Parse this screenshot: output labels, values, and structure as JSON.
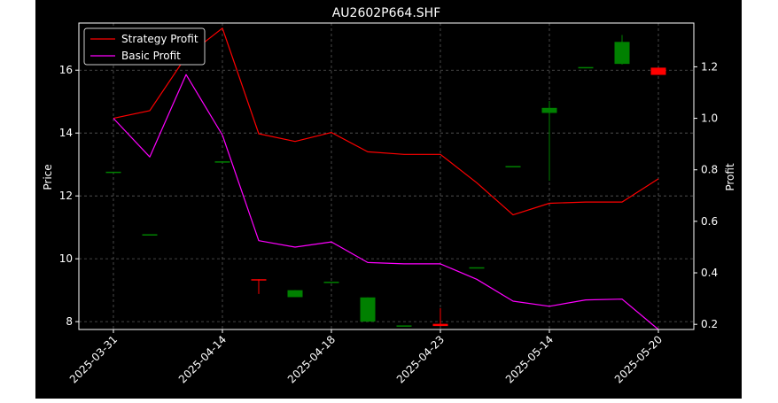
{
  "chart_data": {
    "type": "candlestick",
    "title": "AU2602P664.SHF",
    "ylabel_left": "Price",
    "ylabel_right": "Profit",
    "xlabel": "",
    "x_tick_labels": [
      "2025-03-31",
      "2025-04-14",
      "2025-04-18",
      "2025-04-23",
      "2025-05-14",
      "2025-05-20"
    ],
    "x_tick_indices": [
      0,
      3,
      6,
      9,
      12,
      15
    ],
    "ylim_left": [
      7.75,
      17.5
    ],
    "yticks_left": [
      8,
      10,
      12,
      14,
      16
    ],
    "ylim_right": [
      0.18,
      1.37
    ],
    "yticks_right": [
      0.2,
      0.4,
      0.6,
      0.8,
      1.0,
      1.2
    ],
    "legend": {
      "position": "top-left",
      "entries": [
        "Strategy Profit",
        "Basic Profit"
      ]
    },
    "grid": true,
    "colors": {
      "background": "#000000",
      "up": "#008000",
      "down": "#ff0000",
      "strategy": "#ff0000",
      "basic": "#ff00ff",
      "text": "#ffffff",
      "grid": "#808080"
    },
    "candles": [
      {
        "i": 0,
        "open": 12.77,
        "high": 12.77,
        "low": 12.77,
        "close": 12.77
      },
      {
        "i": 1,
        "open": 10.78,
        "high": 10.78,
        "low": 10.78,
        "close": 10.78
      },
      {
        "i": 3,
        "open": 13.1,
        "high": 13.1,
        "low": 13.1,
        "close": 13.1
      },
      {
        "i": 4,
        "open": 9.35,
        "high": 9.35,
        "low": 8.88,
        "close": 9.33
      },
      {
        "i": 5,
        "open": 8.78,
        "high": 9.0,
        "low": 8.78,
        "close": 9.0
      },
      {
        "i": 6,
        "open": 9.27,
        "high": 9.27,
        "low": 9.27,
        "close": 9.27
      },
      {
        "i": 7,
        "open": 8.0,
        "high": 8.77,
        "low": 8.0,
        "close": 8.77
      },
      {
        "i": 8,
        "open": 7.88,
        "high": 7.88,
        "low": 7.88,
        "close": 7.88
      },
      {
        "i": 9,
        "open": 7.93,
        "high": 8.43,
        "low": 7.86,
        "close": 7.86
      },
      {
        "i": 10,
        "open": 9.73,
        "high": 9.73,
        "low": 9.73,
        "close": 9.73
      },
      {
        "i": 11,
        "open": 12.95,
        "high": 12.95,
        "low": 12.95,
        "close": 12.95
      },
      {
        "i": 12,
        "open": 14.64,
        "high": 15.02,
        "low": 12.48,
        "close": 14.8
      },
      {
        "i": 13,
        "open": 16.1,
        "high": 16.1,
        "low": 16.1,
        "close": 16.1
      },
      {
        "i": 14,
        "open": 16.2,
        "high": 17.12,
        "low": 16.18,
        "close": 16.9
      },
      {
        "i": 15,
        "open": 16.08,
        "high": 16.08,
        "low": 15.85,
        "close": 15.85
      }
    ],
    "series": [
      {
        "name": "Strategy Profit",
        "x": [
          0,
          1,
          2,
          3,
          4,
          5,
          6,
          7,
          8,
          9,
          10,
          11,
          12,
          13,
          14,
          15
        ],
        "values": [
          1.0,
          1.03,
          1.24,
          1.35,
          0.94,
          0.91,
          0.945,
          0.87,
          0.86,
          0.86,
          0.75,
          0.625,
          0.67,
          0.675,
          0.675,
          0.765
        ]
      },
      {
        "name": "Basic Profit",
        "x": [
          0,
          1,
          2,
          3,
          4,
          5,
          6,
          7,
          8,
          9,
          10,
          11,
          12,
          13,
          14,
          15
        ],
        "values": [
          1.0,
          0.85,
          1.17,
          0.935,
          0.525,
          0.5,
          0.52,
          0.44,
          0.435,
          0.435,
          0.375,
          0.29,
          0.27,
          0.295,
          0.298,
          0.18
        ]
      }
    ]
  }
}
